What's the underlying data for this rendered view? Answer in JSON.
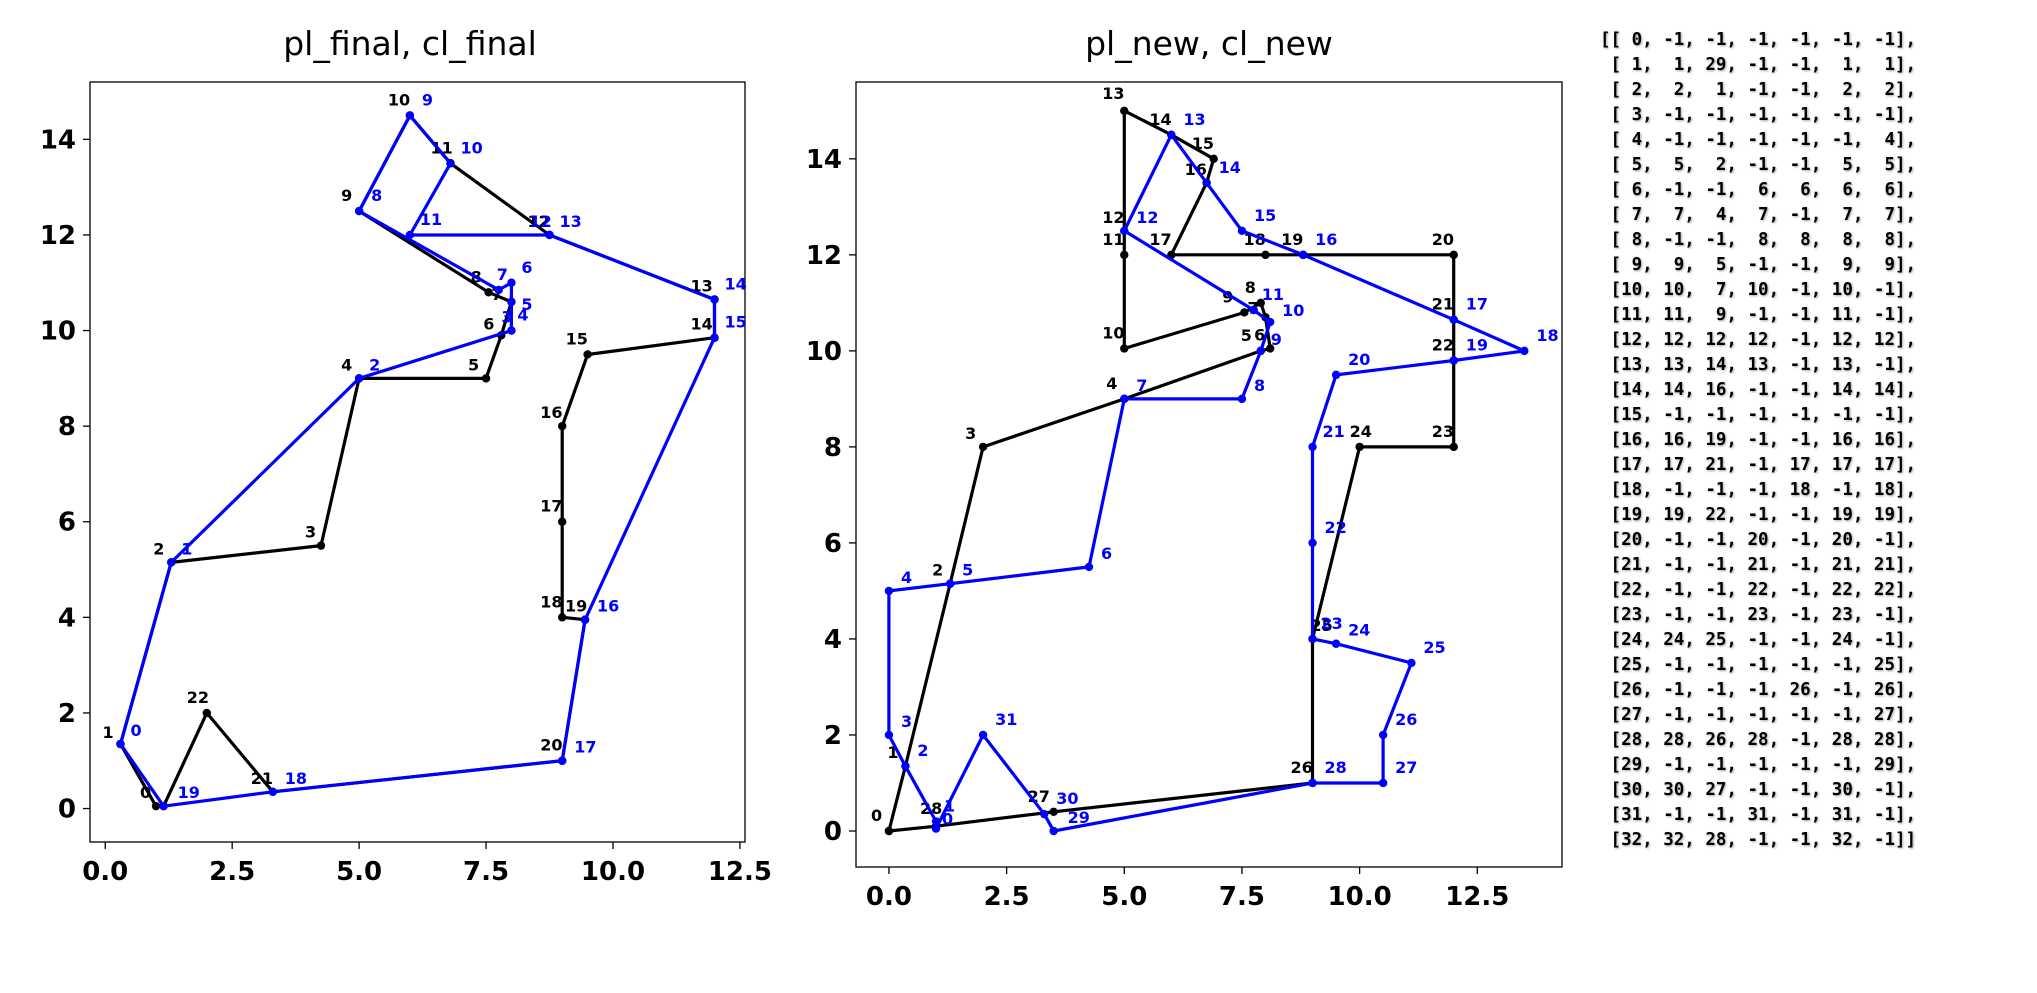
{
  "chart_data": [
    {
      "type": "line",
      "title": "pl_final, cl_final",
      "xlim": [
        -0.3,
        12.6
      ],
      "ylim": [
        -0.7,
        15.2
      ],
      "xticks": [
        "0.0",
        "2.5",
        "5.0",
        "7.5",
        "10.0",
        "12.5"
      ],
      "xtick_values": [
        0,
        2.5,
        5,
        7.5,
        10,
        12.5
      ],
      "yticks": [
        "0",
        "2",
        "4",
        "6",
        "8",
        "10",
        "12",
        "14"
      ],
      "ytick_values": [
        0,
        2,
        4,
        6,
        8,
        10,
        12,
        14
      ],
      "series": [
        {
          "color": "#000000",
          "points": [
            {
              "x": 1.0,
              "y": 0.05,
              "label": "0",
              "dx": -16,
              "dy": -8
            },
            {
              "x": 0.3,
              "y": 1.35,
              "label": "1",
              "dx": -18,
              "dy": -6
            },
            {
              "x": 1.3,
              "y": 5.15,
              "label": "2",
              "dx": -18,
              "dy": -8
            },
            {
              "x": 4.25,
              "y": 5.5,
              "label": "3",
              "dx": -16,
              "dy": -8
            },
            {
              "x": 5.0,
              "y": 9.0,
              "label": "4",
              "dx": -18,
              "dy": -8
            },
            {
              "x": 7.5,
              "y": 9.0,
              "label": "5",
              "dx": -18,
              "dy": -8
            },
            {
              "x": 7.8,
              "y": 9.9,
              "label": "6",
              "dx": -18,
              "dy": -6
            },
            {
              "x": 8.0,
              "y": 10.6,
              "label": "7",
              "dx": -20,
              "dy": -2
            },
            {
              "x": 7.55,
              "y": 10.8,
              "label": "8",
              "dx": -18,
              "dy": -10
            },
            {
              "x": 5.0,
              "y": 12.5,
              "label": "9",
              "dx": -18,
              "dy": -10
            },
            {
              "x": 6.0,
              "y": 14.5,
              "label": "10",
              "dx": -22,
              "dy": -10
            },
            {
              "x": 6.8,
              "y": 13.5,
              "label": "11",
              "dx": -20,
              "dy": -10
            },
            {
              "x": 8.75,
              "y": 12.0,
              "label": "12",
              "dx": -22,
              "dy": -8
            },
            {
              "x": 12.0,
              "y": 10.65,
              "label": "13",
              "dx": -24,
              "dy": -8
            },
            {
              "x": 12.0,
              "y": 9.85,
              "label": "14",
              "dx": -24,
              "dy": -8
            },
            {
              "x": 9.5,
              "y": 9.5,
              "label": "15",
              "dx": -22,
              "dy": -10
            },
            {
              "x": 9.0,
              "y": 8.0,
              "label": "16",
              "dx": -22,
              "dy": -8
            },
            {
              "x": 9.0,
              "y": 6.0,
              "label": "17",
              "dx": -22,
              "dy": -10
            },
            {
              "x": 9.0,
              "y": 4.0,
              "label": "18",
              "dx": -22,
              "dy": -10
            },
            {
              "x": 9.45,
              "y": 3.95,
              "label": "19",
              "dx": -20,
              "dy": -8
            },
            {
              "x": 9.0,
              "y": 1.0,
              "label": "20",
              "dx": -22,
              "dy": -10
            },
            {
              "x": 3.3,
              "y": 0.35,
              "label": "21",
              "dx": -22,
              "dy": -8
            },
            {
              "x": 2.0,
              "y": 2.0,
              "label": "22",
              "dx": -20,
              "dy": -10
            },
            {
              "x": 1.15,
              "y": 0.05,
              "label": "",
              "dx": 0,
              "dy": 0
            }
          ]
        },
        {
          "color": "#0000ff",
          "points": [
            {
              "x": 0.3,
              "y": 1.35,
              "label": "0",
              "dx": 10,
              "dy": -8
            },
            {
              "x": 1.3,
              "y": 5.15,
              "label": "1",
              "dx": 10,
              "dy": -8
            },
            {
              "x": 5.0,
              "y": 9.0,
              "label": "2",
              "dx": 10,
              "dy": -8
            },
            {
              "x": 8.0,
              "y": 10.0,
              "label": "3",
              "dx": -10,
              "dy": -8
            },
            {
              "x": 8.0,
              "y": 10.0,
              "label": "4",
              "dx": 6,
              "dy": -10
            },
            {
              "x": 8.0,
              "y": 10.6,
              "label": "5",
              "dx": 10,
              "dy": 8
            },
            {
              "x": 8.0,
              "y": 11.0,
              "label": "6",
              "dx": 10,
              "dy": -10
            },
            {
              "x": 7.75,
              "y": 10.85,
              "label": "7",
              "dx": -2,
              "dy": -10
            },
            {
              "x": 5.0,
              "y": 12.5,
              "label": "8",
              "dx": 12,
              "dy": -10
            },
            {
              "x": 6.0,
              "y": 14.5,
              "label": "9",
              "dx": 12,
              "dy": -10
            },
            {
              "x": 6.8,
              "y": 13.5,
              "label": "10",
              "dx": 10,
              "dy": -10
            },
            {
              "x": 6.0,
              "y": 12.0,
              "label": "11",
              "dx": 10,
              "dy": -10
            },
            {
              "x": 8.75,
              "y": 12.0,
              "label": "12",
              "dx": -20,
              "dy": -8
            },
            {
              "x": 8.75,
              "y": 12.0,
              "label": "13",
              "dx": 10,
              "dy": -8
            },
            {
              "x": 12.0,
              "y": 10.65,
              "label": "14",
              "dx": 10,
              "dy": -10
            },
            {
              "x": 12.0,
              "y": 9.85,
              "label": "15",
              "dx": 10,
              "dy": -10
            },
            {
              "x": 9.45,
              "y": 3.95,
              "label": "16",
              "dx": 12,
              "dy": -8
            },
            {
              "x": 9.0,
              "y": 1.0,
              "label": "17",
              "dx": 12,
              "dy": -8
            },
            {
              "x": 3.3,
              "y": 0.35,
              "label": "18",
              "dx": 12,
              "dy": -8
            },
            {
              "x": 1.15,
              "y": 0.05,
              "label": "19",
              "dx": 14,
              "dy": -8
            },
            {
              "x": 0.3,
              "y": 1.35,
              "label": "",
              "dx": 0,
              "dy": 0
            }
          ]
        }
      ]
    },
    {
      "type": "line",
      "title": "pl_new, cl_new",
      "xlim": [
        -0.7,
        14.3
      ],
      "ylim": [
        -0.75,
        15.6
      ],
      "xticks": [
        "0.0",
        "2.5",
        "5.0",
        "7.5",
        "10.0",
        "12.5"
      ],
      "xtick_values": [
        0,
        2.5,
        5,
        7.5,
        10,
        12.5
      ],
      "yticks": [
        "0",
        "2",
        "4",
        "6",
        "8",
        "10",
        "12",
        "14"
      ],
      "ytick_values": [
        0,
        2,
        4,
        6,
        8,
        10,
        12,
        14
      ],
      "series": [
        {
          "color": "#000000",
          "points": [
            {
              "x": 0.0,
              "y": 0.0,
              "label": "0",
              "dx": -18,
              "dy": -10
            },
            {
              "x": 0.35,
              "y": 1.35,
              "label": "1",
              "dx": -18,
              "dy": -8
            },
            {
              "x": 1.3,
              "y": 5.15,
              "label": "2",
              "dx": -18,
              "dy": -8
            },
            {
              "x": 2.0,
              "y": 8.0,
              "label": "3",
              "dx": -18,
              "dy": -8
            },
            {
              "x": 5.0,
              "y": 9.0,
              "label": "4",
              "dx": -18,
              "dy": -10
            },
            {
              "x": 7.9,
              "y": 10.0,
              "label": "5",
              "dx": -20,
              "dy": -10
            },
            {
              "x": 8.1,
              "y": 10.05,
              "label": "6",
              "dx": -16,
              "dy": -8
            },
            {
              "x": 8.0,
              "y": 10.7,
              "label": "7",
              "dx": -18,
              "dy": -4
            },
            {
              "x": 7.9,
              "y": 11.0,
              "label": "8",
              "dx": -16,
              "dy": -10
            },
            {
              "x": 7.55,
              "y": 10.8,
              "label": "9",
              "dx": -22,
              "dy": -10
            },
            {
              "x": 5.0,
              "y": 10.05,
              "label": "10",
              "dx": -22,
              "dy": -10
            },
            {
              "x": 5.0,
              "y": 12.0,
              "label": "11",
              "dx": -22,
              "dy": -10
            },
            {
              "x": 5.0,
              "y": 12.5,
              "label": "12",
              "dx": -22,
              "dy": -8
            },
            {
              "x": 5.0,
              "y": 15.0,
              "label": "13",
              "dx": -22,
              "dy": -12
            },
            {
              "x": 6.0,
              "y": 14.5,
              "label": "14",
              "dx": -22,
              "dy": -10
            },
            {
              "x": 6.9,
              "y": 14.0,
              "label": "15",
              "dx": -22,
              "dy": -10
            },
            {
              "x": 6.75,
              "y": 13.5,
              "label": "16",
              "dx": -22,
              "dy": -8
            },
            {
              "x": 6.0,
              "y": 12.0,
              "label": "17",
              "dx": -22,
              "dy": -10
            },
            {
              "x": 8.0,
              "y": 12.0,
              "label": "18",
              "dx": -22,
              "dy": -10
            },
            {
              "x": 8.8,
              "y": 12.0,
              "label": "19",
              "dx": -22,
              "dy": -10
            },
            {
              "x": 12.0,
              "y": 12.0,
              "label": "20",
              "dx": -22,
              "dy": -10
            },
            {
              "x": 12.0,
              "y": 10.65,
              "label": "21",
              "dx": -22,
              "dy": -10
            },
            {
              "x": 12.0,
              "y": 9.8,
              "label": "22",
              "dx": -22,
              "dy": -10
            },
            {
              "x": 12.0,
              "y": 8.0,
              "label": "23",
              "dx": -22,
              "dy": -10
            },
            {
              "x": 10.0,
              "y": 8.0,
              "label": "24",
              "dx": -10,
              "dy": -10
            },
            {
              "x": 9.0,
              "y": 4.0,
              "label": "25",
              "dx": -2,
              "dy": -8
            },
            {
              "x": 9.0,
              "y": 1.0,
              "label": "26",
              "dx": -22,
              "dy": -10
            },
            {
              "x": 3.5,
              "y": 0.4,
              "label": "27",
              "dx": -26,
              "dy": -10
            },
            {
              "x": 1.0,
              "y": 0.1,
              "label": "28",
              "dx": -16,
              "dy": -12
            },
            {
              "x": 0.0,
              "y": 0.0,
              "label": "",
              "dx": 0,
              "dy": 0
            }
          ]
        },
        {
          "color": "#0000ff",
          "points": [
            {
              "x": 1.0,
              "y": 0.05,
              "label": "0",
              "dx": 6,
              "dy": -4
            },
            {
              "x": 1.0,
              "y": 0.2,
              "label": "1",
              "dx": 8,
              "dy": -10
            },
            {
              "x": 0.35,
              "y": 1.35,
              "label": "2",
              "dx": 12,
              "dy": -10
            },
            {
              "x": 0.0,
              "y": 2.0,
              "label": "3",
              "dx": 12,
              "dy": -8
            },
            {
              "x": 0.0,
              "y": 5.0,
              "label": "4",
              "dx": 12,
              "dy": -8
            },
            {
              "x": 1.3,
              "y": 5.15,
              "label": "5",
              "dx": 12,
              "dy": -8
            },
            {
              "x": 4.25,
              "y": 5.5,
              "label": "6",
              "dx": 12,
              "dy": -8
            },
            {
              "x": 5.0,
              "y": 9.0,
              "label": "7",
              "dx": 12,
              "dy": -8
            },
            {
              "x": 7.5,
              "y": 9.0,
              "label": "8",
              "dx": 12,
              "dy": -8
            },
            {
              "x": 7.9,
              "y": 10.0,
              "label": "9",
              "dx": 10,
              "dy": -6
            },
            {
              "x": 8.1,
              "y": 10.6,
              "label": "10",
              "dx": 12,
              "dy": -6
            },
            {
              "x": 7.75,
              "y": 10.85,
              "label": "11",
              "dx": 8,
              "dy": -10
            },
            {
              "x": 5.0,
              "y": 12.5,
              "label": "12",
              "dx": 12,
              "dy": -8
            },
            {
              "x": 6.0,
              "y": 14.5,
              "label": "13",
              "dx": 12,
              "dy": -10
            },
            {
              "x": 6.75,
              "y": 13.5,
              "label": "14",
              "dx": 12,
              "dy": -10
            },
            {
              "x": 7.5,
              "y": 12.5,
              "label": "15",
              "dx": 12,
              "dy": -10
            },
            {
              "x": 8.8,
              "y": 12.0,
              "label": "16",
              "dx": 12,
              "dy": -10
            },
            {
              "x": 12.0,
              "y": 10.65,
              "label": "17",
              "dx": 12,
              "dy": -10
            },
            {
              "x": 13.5,
              "y": 10.0,
              "label": "18",
              "dx": 12,
              "dy": -10
            },
            {
              "x": 12.0,
              "y": 9.8,
              "label": "19",
              "dx": 12,
              "dy": -10
            },
            {
              "x": 9.5,
              "y": 9.5,
              "label": "20",
              "dx": 12,
              "dy": -10
            },
            {
              "x": 9.0,
              "y": 8.0,
              "label": "21",
              "dx": 10,
              "dy": -10
            },
            {
              "x": 9.0,
              "y": 6.0,
              "label": "22",
              "dx": 12,
              "dy": -10
            },
            {
              "x": 9.0,
              "y": 4.0,
              "label": "23",
              "dx": 8,
              "dy": -10
            },
            {
              "x": 9.5,
              "y": 3.9,
              "label": "24",
              "dx": 12,
              "dy": -8
            },
            {
              "x": 11.1,
              "y": 3.5,
              "label": "25",
              "dx": 12,
              "dy": -10
            },
            {
              "x": 10.5,
              "y": 2.0,
              "label": "26",
              "dx": 12,
              "dy": -10
            },
            {
              "x": 10.5,
              "y": 1.0,
              "label": "27",
              "dx": 12,
              "dy": -10
            },
            {
              "x": 9.0,
              "y": 1.0,
              "label": "28",
              "dx": 12,
              "dy": -10
            },
            {
              "x": 3.5,
              "y": 0.0,
              "label": "29",
              "dx": 14,
              "dy": -8
            },
            {
              "x": 3.3,
              "y": 0.35,
              "label": "30",
              "dx": 12,
              "dy": -10
            },
            {
              "x": 2.0,
              "y": 2.0,
              "label": "31",
              "dx": 12,
              "dy": -10
            },
            {
              "x": 1.0,
              "y": 0.05,
              "label": "",
              "dx": 0,
              "dy": 0
            }
          ]
        }
      ]
    }
  ],
  "matrix_lines": [
    "[[ 0, -1, -1, -1, -1, -1, -1],",
    " [ 1,  1, 29, -1, -1,  1,  1],",
    " [ 2,  2,  1, -1, -1,  2,  2],",
    " [ 3, -1, -1, -1, -1, -1, -1],",
    " [ 4, -1, -1, -1, -1, -1,  4],",
    " [ 5,  5,  2, -1, -1,  5,  5],",
    " [ 6, -1, -1,  6,  6,  6,  6],",
    " [ 7,  7,  4,  7, -1,  7,  7],",
    " [ 8, -1, -1,  8,  8,  8,  8],",
    " [ 9,  9,  5, -1, -1,  9,  9],",
    " [10, 10,  7, 10, -1, 10, -1],",
    " [11, 11,  9, -1, -1, 11, -1],",
    " [12, 12, 12, 12, -1, 12, 12],",
    " [13, 13, 14, 13, -1, 13, -1],",
    " [14, 14, 16, -1, -1, 14, 14],",
    " [15, -1, -1, -1, -1, -1, -1],",
    " [16, 16, 19, -1, -1, 16, 16],",
    " [17, 17, 21, -1, 17, 17, 17],",
    " [18, -1, -1, -1, 18, -1, 18],",
    " [19, 19, 22, -1, -1, 19, 19],",
    " [20, -1, -1, 20, -1, 20, -1],",
    " [21, -1, -1, 21, -1, 21, 21],",
    " [22, -1, -1, 22, -1, 22, 22],",
    " [23, -1, -1, 23, -1, 23, -1],",
    " [24, 24, 25, -1, -1, 24, -1],",
    " [25, -1, -1, -1, -1, -1, 25],",
    " [26, -1, -1, -1, 26, -1, 26],",
    " [27, -1, -1, -1, -1, -1, 27],",
    " [28, 28, 26, 28, -1, 28, 28],",
    " [29, -1, -1, -1, -1, -1, 29],",
    " [30, 30, 27, -1, -1, 30, -1],",
    " [31, -1, -1, 31, -1, 31, -1],",
    " [32, 32, 28, -1, -1, 32, -1]]"
  ]
}
